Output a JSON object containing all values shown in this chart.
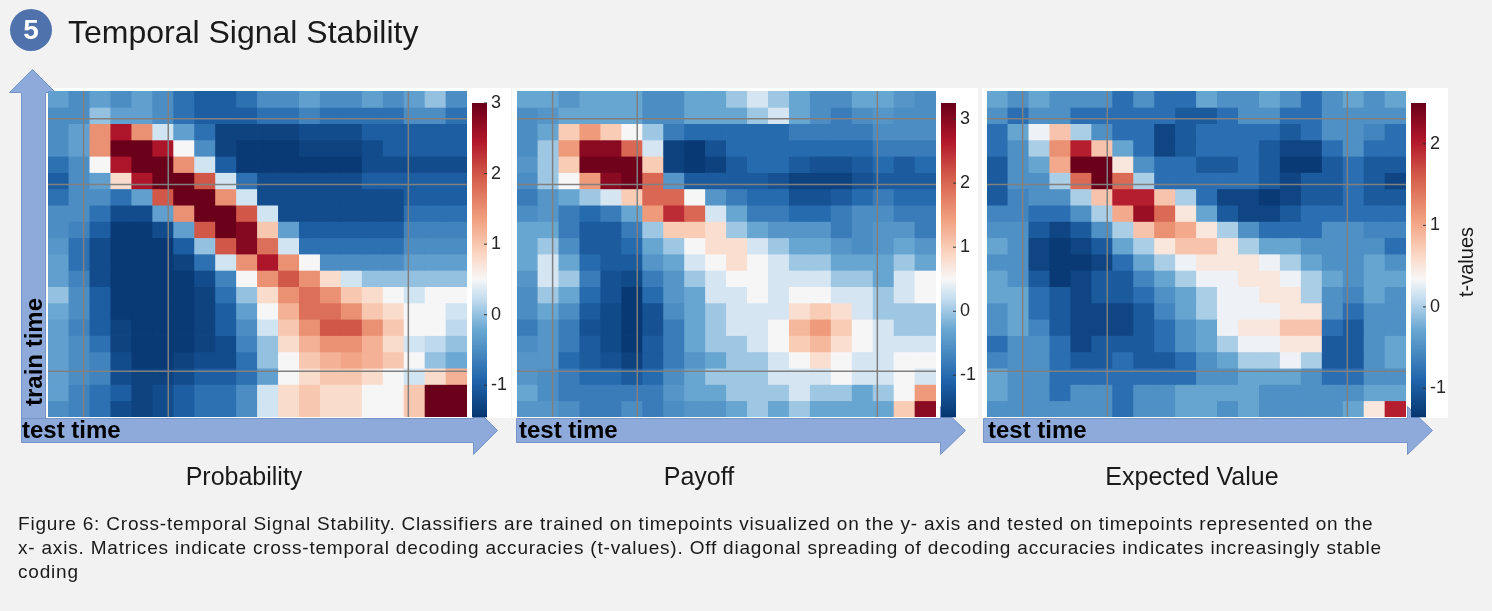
{
  "chart_data": [
    {
      "type": "heatmap",
      "title": "Probability",
      "xlabel": "test time",
      "ylabel": "train time",
      "annotations": [
        "5",
        "Temporal Signal Stability",
        "Figure 6: Cross-temporal Signal Stability. Classifiers are trained on timepoints visualized on the y- axis and tested on timepoints represented on the x- axis. Matrices indicate cross-temporal decoding accuracies (t-values). Off diagonal spreading of decoding accuracies indicates increasingly stable coding"
      ],
      "categories": [
        null,
        null,
        null,
        null,
        null,
        null,
        null,
        null,
        null,
        null,
        null,
        null,
        null,
        null,
        null,
        null,
        null,
        null,
        null,
        null
      ],
      "y_categories": [
        null,
        null,
        null,
        null,
        null,
        null,
        null,
        null,
        null,
        null,
        null,
        null,
        null,
        null,
        null,
        null,
        null,
        null,
        null,
        null
      ],
      "cells": [
        [
          -0.3,
          -0.5,
          -0.3,
          -0.5,
          -0.3,
          -0.5,
          -0.8,
          -1,
          -1,
          -0.8,
          -0.5,
          -0.5,
          -0.3,
          -0.5,
          -0.5,
          -0.3,
          -0.5,
          -0.3,
          0,
          -0.5
        ],
        [
          -0.5,
          -0.5,
          0,
          -0.3,
          -0.3,
          -0.5,
          -0.8,
          -1,
          -1,
          -1,
          -0.8,
          -0.8,
          -0.6,
          -0.8,
          -0.8,
          -0.8,
          -0.8,
          -0.5,
          -0.5,
          -0.8
        ],
        [
          -0.5,
          -0.3,
          1.5,
          2.5,
          1.5,
          0.3,
          -0.3,
          -0.8,
          -1.3,
          -1.3,
          -1.3,
          -1.3,
          -1.2,
          -1.2,
          -1.2,
          -1,
          -1,
          -1,
          -1,
          -1
        ],
        [
          -0.5,
          -0.3,
          1.5,
          3,
          3,
          2.5,
          0.5,
          -0.5,
          -1.3,
          -1.4,
          -1.4,
          -1.4,
          -1.3,
          -1.3,
          -1.3,
          -1.2,
          -1,
          -1,
          -1,
          -1
        ],
        [
          -0.8,
          -0.5,
          0.5,
          2.5,
          3,
          3,
          1.5,
          0.3,
          -1,
          -1.4,
          -1.4,
          -1.4,
          -1.4,
          -1.4,
          -1.4,
          -1.2,
          -1.2,
          -1.2,
          -1.2,
          -1.2
        ],
        [
          -1,
          -0.5,
          -0.3,
          0.8,
          2.5,
          3,
          3,
          2,
          0.3,
          -0.8,
          -1.2,
          -1.2,
          -1.2,
          -1.2,
          -1.2,
          -1,
          -1,
          -1,
          -1,
          -1
        ],
        [
          -0.8,
          -0.5,
          -0.5,
          -0.8,
          -0.3,
          2,
          3,
          3,
          1.5,
          0.3,
          -1.2,
          -1.2,
          -1.2,
          -1.2,
          -1.2,
          -1.2,
          -1.2,
          -1,
          -1,
          -1
        ],
        [
          -0.5,
          -0.5,
          -0.8,
          -1.2,
          -1.2,
          -0.3,
          1.5,
          3,
          3,
          2,
          0.3,
          -1.2,
          -1.2,
          -1.2,
          -1.2,
          -1.2,
          -1.2,
          -0.8,
          -0.8,
          -0.8
        ],
        [
          -0.5,
          -0.6,
          -1,
          -1.4,
          -1.4,
          -1.2,
          -0.3,
          2,
          3,
          2.8,
          1,
          -0.3,
          -1,
          -1,
          -1,
          -1,
          -1,
          -0.6,
          -0.6,
          -0.6
        ],
        [
          -0.4,
          -0.8,
          -1.2,
          -1.4,
          -1.4,
          -1.4,
          -1,
          0,
          2,
          2.8,
          1.8,
          0.3,
          -0.8,
          -0.8,
          -0.8,
          -0.8,
          -0.8,
          -0.5,
          -0.5,
          -0.5
        ],
        [
          -0.3,
          -0.8,
          -1.2,
          -1.4,
          -1.4,
          -1.4,
          -1.3,
          -0.8,
          0.3,
          1.5,
          2.5,
          1.5,
          0.5,
          -0.5,
          -0.5,
          -0.5,
          -0.5,
          -0.3,
          -0.3,
          -0.3
        ],
        [
          -0.3,
          -0.6,
          -1.2,
          -1.4,
          -1.4,
          -1.4,
          -1.4,
          -1.2,
          -0.6,
          0.5,
          1.5,
          2,
          1.5,
          0.8,
          0.3,
          0,
          0,
          0,
          0,
          0
        ],
        [
          0,
          -0.5,
          -1,
          -1.4,
          -1.4,
          -1.4,
          -1.4,
          -1.3,
          -0.8,
          0,
          0.8,
          1.5,
          1.8,
          1.5,
          1,
          0.8,
          0.5,
          0.3,
          0.5,
          0.5
        ],
        [
          -0.2,
          -0.5,
          -1,
          -1.4,
          -1.4,
          -1.4,
          -1.4,
          -1.3,
          -1,
          -0.3,
          0.5,
          1.2,
          1.8,
          1.8,
          1.5,
          1,
          0.8,
          0.5,
          0.5,
          0.3
        ],
        [
          -0.3,
          -0.6,
          -1,
          -1.3,
          -1.4,
          -1.4,
          -1.4,
          -1.3,
          -1,
          -0.5,
          0.3,
          1,
          1.5,
          2,
          2,
          1.5,
          1,
          0.5,
          0.5,
          0.2
        ],
        [
          -0.3,
          -0.5,
          -0.8,
          -1.3,
          -1.4,
          -1.4,
          -1.4,
          -1.3,
          -1.2,
          -0.6,
          0,
          0.8,
          1.2,
          1.5,
          1.5,
          1.2,
          0.8,
          0.3,
          0.2,
          0
        ],
        [
          -0.3,
          -0.5,
          -0.6,
          -1.2,
          -1.4,
          -1.4,
          -1.3,
          -1.2,
          -1.2,
          -0.8,
          0,
          0.5,
          1,
          1.2,
          1.3,
          1.2,
          1,
          0.5,
          0,
          -0.2
        ],
        [
          -0.3,
          -0.5,
          -0.6,
          -1.2,
          -1.3,
          -1.3,
          -1.2,
          -1,
          -1,
          -0.8,
          -0.3,
          0.5,
          0.8,
          1,
          1,
          0.8,
          0.5,
          0.3,
          0.8,
          1.2
        ],
        [
          -0.3,
          -0.6,
          -0.8,
          -1,
          -1.3,
          -1.2,
          -1,
          -0.8,
          -0.8,
          -0.5,
          0.3,
          0.8,
          1,
          0.8,
          0.8,
          0.5,
          0.5,
          1,
          3,
          3
        ],
        [
          -0.5,
          -0.6,
          -0.8,
          -1.2,
          -1.3,
          -1.2,
          -1,
          -0.8,
          -0.8,
          -0.5,
          0.3,
          0.8,
          1,
          0.8,
          0.8,
          0.5,
          0.5,
          1,
          3,
          3
        ]
      ],
      "clim": [
        -1.45,
        3
      ],
      "cticks": [
        -1,
        0,
        1,
        2,
        3
      ]
    },
    {
      "type": "heatmap",
      "title": "Payoff",
      "xlabel": "test time",
      "categories": [
        null,
        null,
        null,
        null,
        null,
        null,
        null,
        null,
        null,
        null,
        null,
        null,
        null,
        null,
        null,
        null,
        null,
        null,
        null,
        null
      ],
      "y_categories": [
        null,
        null,
        null,
        null,
        null,
        null,
        null,
        null,
        null,
        null,
        null,
        null,
        null,
        null,
        null,
        null,
        null,
        null,
        null,
        null
      ],
      "cells": [
        [
          -0.3,
          -0.3,
          -0.5,
          -0.3,
          -0.3,
          -0.3,
          -0.6,
          -0.6,
          -0.3,
          -0.3,
          0,
          0.3,
          0,
          -0.3,
          -0.6,
          -0.6,
          -0.3,
          -0.3,
          -0.5,
          -0.6
        ],
        [
          -0.6,
          -0.5,
          -0.3,
          -0.3,
          -0.3,
          -0.3,
          -0.6,
          -0.6,
          -0.3,
          -0.3,
          -0.3,
          0,
          0.3,
          -0.3,
          -0.6,
          -0.8,
          -0.6,
          -0.5,
          -0.6,
          -0.6
        ],
        [
          -0.6,
          -0.3,
          1,
          1.5,
          1,
          0.5,
          0,
          -0.8,
          -1,
          -1,
          -1,
          -1,
          -1,
          -0.8,
          -0.8,
          -0.8,
          -0.8,
          -0.6,
          -0.6,
          -0.6
        ],
        [
          -0.6,
          0,
          1.5,
          3,
          3,
          2,
          0.3,
          -1.5,
          -1.6,
          -1.3,
          -1,
          -1,
          -1,
          -1,
          -1,
          -1,
          -1,
          -0.8,
          -0.8,
          -0.8
        ],
        [
          -0.5,
          0,
          1,
          3.2,
          3.2,
          3.2,
          1,
          -1.5,
          -1.6,
          -1.5,
          -1.2,
          -1,
          -1,
          -1.2,
          -1.3,
          -1.3,
          -1.2,
          -1,
          -1.2,
          -1
        ],
        [
          -0.6,
          0,
          0.5,
          1.5,
          3,
          3.2,
          2,
          -0.5,
          -1.2,
          -1.2,
          -1.2,
          -1.2,
          -1.3,
          -1.5,
          -1.5,
          -1.5,
          -1.3,
          -1.2,
          -1.2,
          -1.2
        ],
        [
          -0.8,
          -0.5,
          -0.3,
          0,
          0.3,
          1,
          2,
          2,
          0.5,
          -0.5,
          -0.8,
          -1,
          -1,
          -1.3,
          -1.3,
          -1.2,
          -1,
          -0.8,
          -1,
          -1
        ],
        [
          -0.6,
          -0.5,
          -0.8,
          -1,
          -0.8,
          -0.3,
          1.5,
          2.5,
          2,
          0.3,
          -0.3,
          -0.8,
          -0.8,
          -1,
          -1,
          -0.8,
          -0.6,
          -0.6,
          -0.8,
          -0.8
        ],
        [
          -0.3,
          -0.3,
          -0.8,
          -1.2,
          -1.2,
          -0.8,
          0,
          1,
          1,
          0.8,
          0,
          -0.3,
          -0.5,
          -0.5,
          -0.5,
          -0.8,
          -0.6,
          -0.5,
          -0.5,
          -0.8
        ],
        [
          -0.3,
          0,
          -0.6,
          -1.2,
          -1.2,
          -1,
          -0.3,
          0,
          0.5,
          0.8,
          0.8,
          0.3,
          0,
          -0.3,
          -0.3,
          -0.5,
          -0.6,
          -0.5,
          -0.3,
          -0.5
        ],
        [
          -0.3,
          0.3,
          -0.3,
          -1,
          -1.2,
          -1.2,
          -0.5,
          -0.3,
          0.3,
          0.5,
          0.8,
          0.5,
          0.3,
          0,
          0,
          -0.3,
          -0.3,
          -0.3,
          0,
          -0.3
        ],
        [
          -0.5,
          0.3,
          0,
          -0.8,
          -1.3,
          -1.4,
          -0.8,
          -0.5,
          0,
          0.3,
          0.5,
          0.5,
          0.3,
          0.3,
          0.3,
          0,
          0,
          -0.3,
          0.3,
          0.5
        ],
        [
          -0.6,
          0,
          -0.3,
          -1,
          -1.3,
          -1.6,
          -1,
          -0.5,
          -0.3,
          0.3,
          0.3,
          0.5,
          0.3,
          0.5,
          0.5,
          0.3,
          0.3,
          0,
          0.3,
          0.5
        ],
        [
          -0.6,
          -0.3,
          -0.6,
          -1.2,
          -1.4,
          -1.6,
          -1.3,
          -0.6,
          -0.3,
          0,
          0.3,
          0.3,
          0.3,
          0.8,
          1,
          0.8,
          0.3,
          0,
          0,
          0
        ],
        [
          -0.8,
          -0.5,
          -0.8,
          -1.3,
          -1.4,
          -1.6,
          -1.3,
          -0.8,
          -0.3,
          0,
          0.3,
          0.3,
          0.5,
          1.2,
          1.5,
          1,
          0.5,
          0.3,
          0,
          0
        ],
        [
          -0.6,
          -0.5,
          -0.8,
          -1.2,
          -1.4,
          -1.6,
          -1.2,
          -0.8,
          -0.3,
          0,
          0,
          0.3,
          0.5,
          1,
          1.2,
          0.8,
          0.5,
          0.3,
          0.3,
          0.3
        ],
        [
          -0.5,
          -0.5,
          -1,
          -1.2,
          -1.3,
          -1.5,
          -1.2,
          -0.8,
          -0.5,
          -0.3,
          0,
          0,
          0.3,
          0.5,
          0.8,
          0.5,
          0.3,
          0.3,
          0.5,
          0.5
        ],
        [
          -0.5,
          -0.6,
          -0.8,
          -1,
          -1,
          -1.2,
          -1,
          -0.6,
          -0.3,
          0,
          0,
          0,
          0.3,
          0.3,
          0.3,
          0.5,
          0.3,
          0.3,
          0.5,
          0.3
        ],
        [
          -0.3,
          -0.6,
          -0.8,
          -0.8,
          -0.8,
          -0.8,
          -0.8,
          -0.5,
          -0.3,
          -0.3,
          0,
          0,
          0,
          0.3,
          0,
          0,
          -0.3,
          0,
          0.5,
          1.5
        ],
        [
          -0.5,
          -0.5,
          -0.6,
          -0.8,
          -0.8,
          -0.6,
          -0.8,
          -0.6,
          -0.5,
          -0.5,
          -0.3,
          0,
          -0.3,
          0,
          -0.3,
          -0.3,
          -0.3,
          -0.3,
          1,
          3
        ]
      ],
      "clim": [
        -1.65,
        3.25
      ],
      "cticks": [
        -1,
        0,
        1,
        2,
        3
      ]
    },
    {
      "type": "heatmap",
      "title": "Expected Value",
      "xlabel": "test time",
      "clabel": "t-values",
      "categories": [
        null,
        null,
        null,
        null,
        null,
        null,
        null,
        null,
        null,
        null,
        null,
        null,
        null,
        null,
        null,
        null,
        null,
        null,
        null,
        null
      ],
      "y_categories": [
        null,
        null,
        null,
        null,
        null,
        null,
        null,
        null,
        null,
        null,
        null,
        null,
        null,
        null,
        null,
        null,
        null,
        null,
        null,
        null
      ],
      "cells": [
        [
          -0.3,
          -0.5,
          -0.3,
          -0.5,
          -0.5,
          -0.5,
          -0.8,
          -0.5,
          -0.8,
          -0.8,
          -0.3,
          -0.5,
          -0.5,
          -0.3,
          -0.5,
          -0.8,
          -0.5,
          -0.3,
          -0.5,
          -0.3
        ],
        [
          -0.5,
          -0.8,
          -0.5,
          -0.5,
          -0.8,
          -0.8,
          -0.8,
          -0.8,
          -0.8,
          -1,
          -1,
          -0.8,
          -0.5,
          -0.5,
          -0.8,
          -0.8,
          -0.5,
          -0.5,
          -0.5,
          -0.5
        ],
        [
          -0.8,
          -0.3,
          0.3,
          0.8,
          0,
          -0.5,
          -0.8,
          -0.8,
          -1.2,
          -1,
          -0.8,
          -0.8,
          -0.8,
          -0.8,
          -1,
          -0.8,
          -0.5,
          -0.5,
          -0.6,
          -0.8
        ],
        [
          -0.8,
          -0.5,
          0,
          1.2,
          2,
          0.8,
          -0.3,
          -0.8,
          -1.2,
          -1,
          -0.8,
          -0.8,
          -0.8,
          -1,
          -1.2,
          -1.2,
          -0.8,
          -0.5,
          -0.8,
          -0.8
        ],
        [
          -1,
          -0.5,
          -0.3,
          1,
          2.5,
          2.5,
          0.5,
          -0.5,
          -0.8,
          -0.8,
          -1,
          -1,
          -0.8,
          -1,
          -1.3,
          -1.3,
          -1,
          -0.8,
          -1,
          -1
        ],
        [
          -1,
          -0.5,
          -0.5,
          0,
          1.5,
          2.5,
          1.5,
          0,
          -0.8,
          -0.8,
          -0.8,
          -0.8,
          -0.8,
          -1,
          -1.2,
          -1,
          -1,
          -0.8,
          -1,
          -1.2
        ],
        [
          -1,
          -0.6,
          -0.5,
          -0.5,
          0,
          0.8,
          2,
          2,
          0.8,
          0,
          -0.8,
          -1.2,
          -1.2,
          -1.3,
          -1.2,
          -1,
          -1,
          -0.8,
          -1,
          -1
        ],
        [
          -0.6,
          -0.6,
          -0.8,
          -0.8,
          -0.5,
          0,
          1,
          2.2,
          1.5,
          0.5,
          -0.3,
          -1,
          -1.2,
          -1.2,
          -1,
          -0.8,
          -0.8,
          -0.8,
          -0.8,
          -0.8
        ],
        [
          -0.5,
          -0.5,
          -1,
          -1.2,
          -1,
          -0.5,
          0,
          0.8,
          1.2,
          1,
          0.5,
          0,
          -0.5,
          -0.8,
          -0.8,
          -0.8,
          -0.5,
          -0.5,
          -0.6,
          -0.6
        ],
        [
          -0.3,
          -0.5,
          -1.2,
          -1.3,
          -1.2,
          -1,
          -0.3,
          0,
          0.5,
          0.8,
          0.8,
          0.5,
          0,
          -0.3,
          -0.3,
          -0.5,
          -0.5,
          -0.5,
          -0.5,
          -0.8
        ],
        [
          -0.5,
          -0.5,
          -1.2,
          -1.3,
          -1.3,
          -1.2,
          -0.8,
          -0.3,
          0,
          0.3,
          0.5,
          0.5,
          0.5,
          0.3,
          0,
          -0.3,
          -0.5,
          -0.5,
          -0.3,
          -0.5
        ],
        [
          -0.3,
          -0.5,
          -1,
          -1.3,
          -1.2,
          -1,
          -1,
          -0.6,
          -0.3,
          0,
          0.3,
          0.3,
          0.5,
          0.5,
          0.3,
          0,
          -0.3,
          -0.5,
          -0.3,
          -0.3
        ],
        [
          -0.3,
          -0.3,
          -0.8,
          -1,
          -1.2,
          -1,
          -1,
          -0.8,
          -0.5,
          -0.3,
          0,
          0.3,
          0.3,
          0.5,
          0.5,
          0,
          -0.5,
          -0.6,
          -0.3,
          -0.5
        ],
        [
          -0.5,
          -0.3,
          -0.8,
          -1,
          -1.2,
          -1.2,
          -1.2,
          -1,
          -0.6,
          -0.3,
          0,
          0.3,
          0.3,
          0.3,
          0.5,
          0.5,
          -0.5,
          -0.8,
          -0.5,
          -0.5
        ],
        [
          -0.5,
          -0.3,
          -0.6,
          -1,
          -1.2,
          -1.2,
          -1.2,
          -1,
          -0.8,
          -0.5,
          -0.3,
          0.3,
          0.5,
          0.5,
          0.8,
          0.8,
          -0.8,
          -1,
          -0.5,
          -0.5
        ],
        [
          -0.8,
          -0.5,
          -0.5,
          -0.8,
          -1.2,
          -1,
          -1,
          -1,
          -0.8,
          -0.5,
          -0.3,
          0,
          0.3,
          0.3,
          0.5,
          0.5,
          -1,
          -1,
          -0.5,
          -0.3
        ],
        [
          -0.6,
          -0.5,
          -0.5,
          -0.8,
          -1,
          -1,
          -0.8,
          -1,
          -1,
          -0.8,
          -0.5,
          -0.3,
          0,
          0,
          0.3,
          0,
          -1,
          -1,
          -0.5,
          -0.3
        ],
        [
          -0.3,
          -0.5,
          -0.5,
          -0.8,
          -0.8,
          -0.8,
          -0.8,
          -0.8,
          -0.8,
          -0.8,
          -0.5,
          -0.5,
          -0.3,
          -0.3,
          -0.3,
          -0.5,
          -0.8,
          -0.8,
          -0.5,
          -0.5
        ],
        [
          -0.3,
          -0.5,
          -0.5,
          -0.8,
          -0.5,
          -0.5,
          -0.8,
          -0.5,
          -0.5,
          -0.3,
          -0.3,
          -0.3,
          -0.3,
          -0.5,
          -0.5,
          -0.5,
          -0.5,
          -0.5,
          -0.3,
          -0.3
        ],
        [
          -0.5,
          -0.5,
          -0.5,
          -0.5,
          -0.5,
          -0.5,
          -0.8,
          -0.5,
          -0.5,
          -0.3,
          -0.3,
          -0.5,
          -0.3,
          -0.5,
          -0.5,
          -0.5,
          -0.5,
          -0.3,
          0.5,
          2
        ]
      ],
      "clim": [
        -1.35,
        2.5
      ],
      "cticks": [
        -1,
        0,
        1,
        2
      ]
    }
  ]
}
